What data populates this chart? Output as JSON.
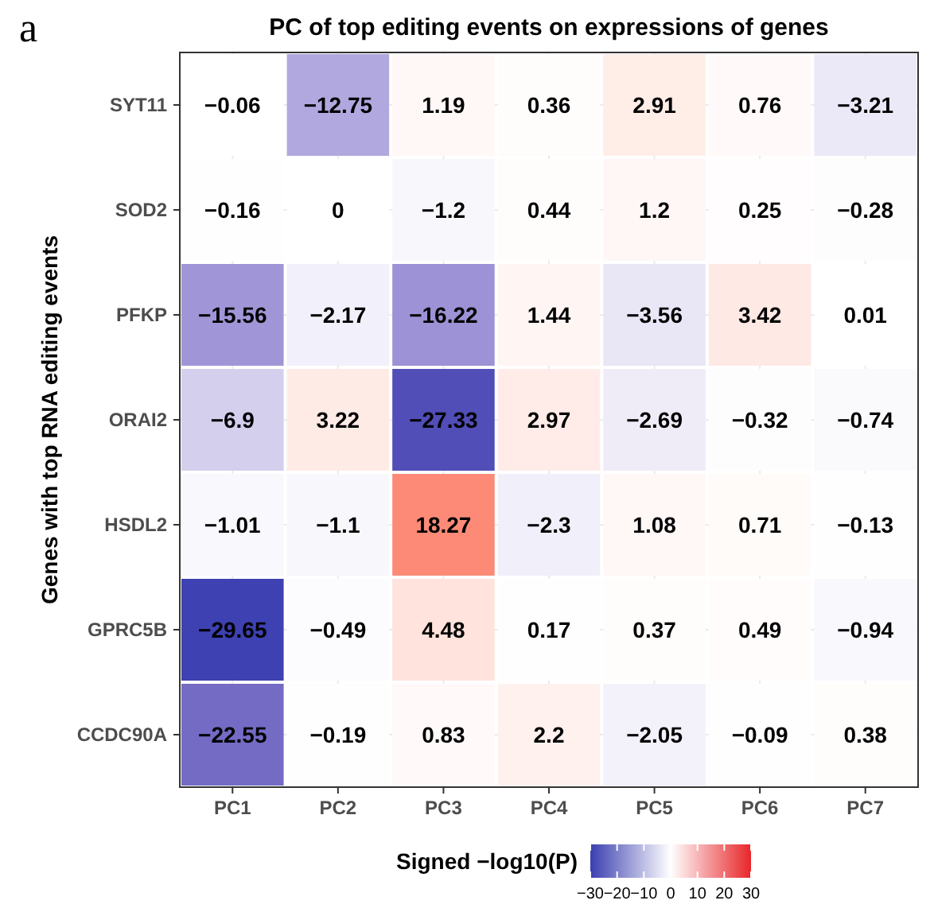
{
  "chart_data": {
    "type": "heatmap",
    "title": "PC of top editing events on expressions of genes",
    "ylabel": "Genes with top RNA editing events",
    "clabel": "Signed −log10(P)",
    "annotations": [
      "a"
    ],
    "categories": [
      "PC1",
      "PC2",
      "PC3",
      "PC4",
      "PC5",
      "PC6",
      "PC7"
    ],
    "y_categories": [
      "SYT11",
      "SOD2",
      "PFKP",
      "ORAI2",
      "HSDL2",
      "GPRC5B",
      "CCDC90A"
    ],
    "cells": [
      [
        -0.06,
        -12.75,
        1.19,
        0.36,
        2.91,
        0.76,
        -3.21
      ],
      [
        -0.16,
        0,
        -1.2,
        0.44,
        1.2,
        0.25,
        -0.28
      ],
      [
        -15.56,
        -2.17,
        -16.22,
        1.44,
        -3.56,
        3.42,
        0.01
      ],
      [
        -6.9,
        3.22,
        -27.33,
        2.97,
        -2.69,
        -0.32,
        -0.74
      ],
      [
        -1.01,
        -1.1,
        18.27,
        -2.3,
        1.08,
        0.71,
        -0.13
      ],
      [
        -29.65,
        -0.49,
        4.48,
        0.17,
        0.37,
        0.49,
        -0.94
      ],
      [
        -22.55,
        -0.19,
        0.83,
        2.2,
        -2.05,
        -0.09,
        0.38
      ]
    ],
    "clim": [
      -30,
      30
    ],
    "cticks": [
      -30,
      -20,
      -10,
      0,
      10,
      20,
      30
    ],
    "colors": [
      "#3b3fb0",
      "#ffffff",
      "#e8262a"
    ],
    "data_labels": true,
    "grid": true
  }
}
